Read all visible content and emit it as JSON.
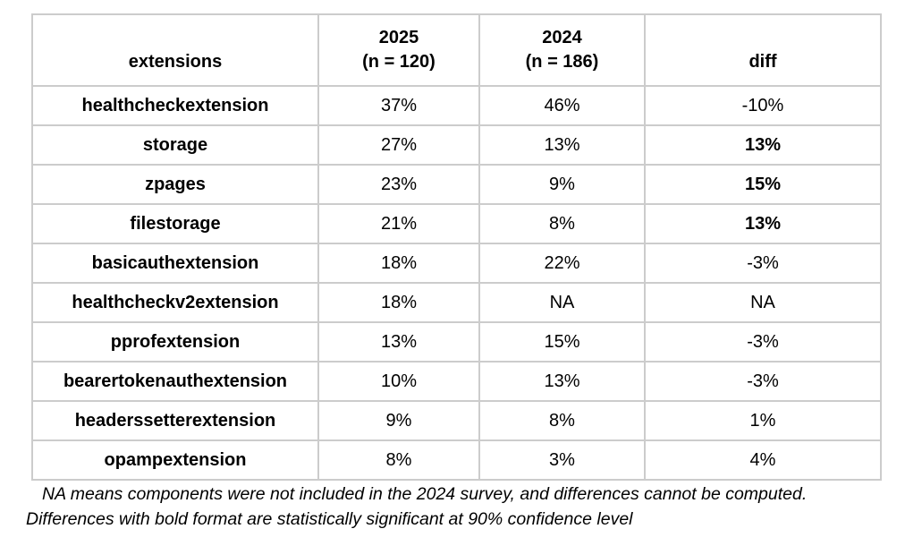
{
  "chart_data": {
    "type": "table",
    "headers": {
      "extensions": "extensions",
      "col2025_line1": "2025",
      "col2025_line2": "(n = 120)",
      "col2024_line1": "2024",
      "col2024_line2": "(n = 186)",
      "diff": "diff"
    },
    "rows": [
      {
        "name": "healthcheckextension",
        "v2025": "37%",
        "v2024": "46%",
        "diff": "-10%",
        "significant": false
      },
      {
        "name": "storage",
        "v2025": "27%",
        "v2024": "13%",
        "diff": "13%",
        "significant": true
      },
      {
        "name": "zpages",
        "v2025": "23%",
        "v2024": "9%",
        "diff": "15%",
        "significant": true
      },
      {
        "name": "filestorage",
        "v2025": "21%",
        "v2024": "8%",
        "diff": "13%",
        "significant": true
      },
      {
        "name": "basicauthextension",
        "v2025": "18%",
        "v2024": "22%",
        "diff": "-3%",
        "significant": false
      },
      {
        "name": "healthcheckv2extension",
        "v2025": "18%",
        "v2024": "NA",
        "diff": "NA",
        "significant": false
      },
      {
        "name": "pprofextension",
        "v2025": "13%",
        "v2024": "15%",
        "diff": "-3%",
        "significant": false
      },
      {
        "name": "bearertokenauthextension",
        "v2025": "10%",
        "v2024": "13%",
        "diff": "-3%",
        "significant": false
      },
      {
        "name": "headerssetterextension",
        "v2025": "9%",
        "v2024": "8%",
        "diff": "1%",
        "significant": false
      },
      {
        "name": "opampextension",
        "v2025": "8%",
        "v2024": "3%",
        "diff": "4%",
        "significant": false
      }
    ],
    "footnotes": [
      "NA means components were not included in the 2024 survey, and differences cannot be computed.",
      "Differences with bold format are statistically significant at 90% confidence level"
    ],
    "colors": {
      "significant_highlight": "#7b9ce3",
      "border": "#cccccc",
      "text": "#000000",
      "background": "#ffffff"
    }
  }
}
